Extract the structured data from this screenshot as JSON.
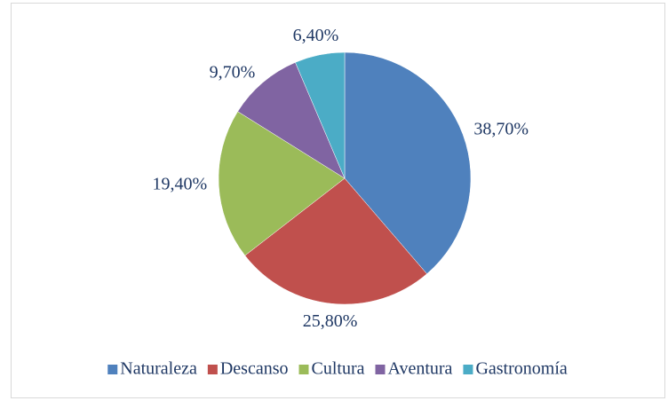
{
  "chart_data": {
    "type": "pie",
    "categories": [
      "Naturaleza",
      "Descanso",
      "Cultura",
      "Aventura",
      "Gastronomía"
    ],
    "values": [
      38.7,
      25.8,
      19.4,
      9.7,
      6.4
    ],
    "value_labels": [
      "38,70%",
      "25,80%",
      "19,40%",
      "9,70%",
      "6,40%"
    ],
    "colors": [
      "#4f81bd",
      "#c0504d",
      "#9bbb59",
      "#8064a2",
      "#4bacc6"
    ],
    "legend": "bottom"
  }
}
